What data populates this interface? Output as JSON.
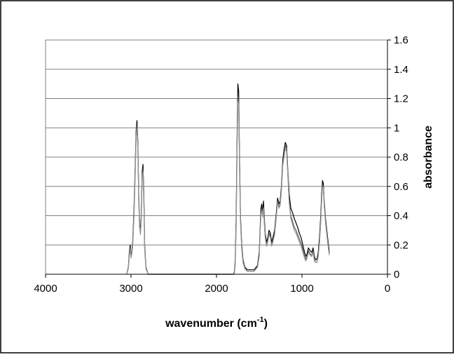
{
  "chart_data": {
    "type": "line",
    "xlabel": "wavenumber (cm",
    "xlabel_sup": "-1",
    "xlabel_close": ")",
    "ylabel": "absorbance",
    "xlim": [
      4000,
      0
    ],
    "ylim": [
      0,
      1.6
    ],
    "x_reversed": true,
    "y_axis_side": "right",
    "grid": "horizontal",
    "legend": "none",
    "x_ticks": [
      "4000",
      "3000",
      "2000",
      "1000",
      "0"
    ],
    "x_tick_values": [
      4000,
      3000,
      2000,
      1000,
      0
    ],
    "y_ticks": [
      "0",
      "0.2",
      "0.4",
      "0.6",
      "0.8",
      "1",
      "1.2",
      "1.4",
      "1.6"
    ],
    "y_tick_values": [
      0,
      0.2,
      0.4,
      0.6,
      0.8,
      1,
      1.2,
      1.4,
      1.6
    ],
    "series": [
      {
        "color": "#000000",
        "points": [
          [
            3050,
            0
          ],
          [
            3030,
            0.05
          ],
          [
            3020,
            0.15
          ],
          [
            3010,
            0.2
          ],
          [
            3000,
            0.12
          ],
          [
            2990,
            0.16
          ],
          [
            2980,
            0.22
          ],
          [
            2965,
            0.45
          ],
          [
            2950,
            0.75
          ],
          [
            2940,
            0.98
          ],
          [
            2930,
            1.05
          ],
          [
            2920,
            0.9
          ],
          [
            2910,
            0.55
          ],
          [
            2900,
            0.35
          ],
          [
            2890,
            0.3
          ],
          [
            2880,
            0.4
          ],
          [
            2870,
            0.7
          ],
          [
            2860,
            0.75
          ],
          [
            2850,
            0.55
          ],
          [
            2840,
            0.2
          ],
          [
            2825,
            0.05
          ],
          [
            2800,
            0
          ],
          [
            1800,
            0
          ],
          [
            1790,
            0.02
          ],
          [
            1780,
            0.1
          ],
          [
            1770,
            0.4
          ],
          [
            1760,
            0.9
          ],
          [
            1750,
            1.3
          ],
          [
            1740,
            1.25
          ],
          [
            1730,
            0.8
          ],
          [
            1720,
            0.4
          ],
          [
            1705,
            0.2
          ],
          [
            1690,
            0.1
          ],
          [
            1670,
            0.05
          ],
          [
            1640,
            0.03
          ],
          [
            1600,
            0.03
          ],
          [
            1560,
            0.03
          ],
          [
            1520,
            0.06
          ],
          [
            1500,
            0.15
          ],
          [
            1490,
            0.3
          ],
          [
            1480,
            0.45
          ],
          [
            1470,
            0.48
          ],
          [
            1460,
            0.42
          ],
          [
            1450,
            0.5
          ],
          [
            1440,
            0.38
          ],
          [
            1430,
            0.28
          ],
          [
            1415,
            0.22
          ],
          [
            1400,
            0.25
          ],
          [
            1385,
            0.3
          ],
          [
            1370,
            0.28
          ],
          [
            1355,
            0.22
          ],
          [
            1340,
            0.25
          ],
          [
            1320,
            0.3
          ],
          [
            1300,
            0.42
          ],
          [
            1285,
            0.52
          ],
          [
            1270,
            0.48
          ],
          [
            1255,
            0.5
          ],
          [
            1240,
            0.6
          ],
          [
            1225,
            0.78
          ],
          [
            1210,
            0.85
          ],
          [
            1195,
            0.9
          ],
          [
            1180,
            0.88
          ],
          [
            1165,
            0.7
          ],
          [
            1150,
            0.55
          ],
          [
            1130,
            0.45
          ],
          [
            1110,
            0.42
          ],
          [
            1090,
            0.38
          ],
          [
            1070,
            0.35
          ],
          [
            1050,
            0.32
          ],
          [
            1030,
            0.28
          ],
          [
            1010,
            0.25
          ],
          [
            990,
            0.2
          ],
          [
            970,
            0.15
          ],
          [
            955,
            0.12
          ],
          [
            940,
            0.14
          ],
          [
            925,
            0.18
          ],
          [
            905,
            0.16
          ],
          [
            885,
            0.15
          ],
          [
            870,
            0.18
          ],
          [
            855,
            0.12
          ],
          [
            840,
            0.1
          ],
          [
            825,
            0.1
          ],
          [
            810,
            0.15
          ],
          [
            795,
            0.25
          ],
          [
            780,
            0.4
          ],
          [
            770,
            0.55
          ],
          [
            760,
            0.64
          ],
          [
            750,
            0.62
          ],
          [
            740,
            0.5
          ],
          [
            725,
            0.38
          ],
          [
            710,
            0.3
          ],
          [
            700,
            0.25
          ],
          [
            690,
            0.2
          ],
          [
            680,
            0.15
          ]
        ]
      },
      {
        "color": "#555555",
        "points": [
          [
            3050,
            0
          ],
          [
            3030,
            0.05
          ],
          [
            3020,
            0.14
          ],
          [
            3010,
            0.18
          ],
          [
            3000,
            0.12
          ],
          [
            2990,
            0.15
          ],
          [
            2980,
            0.2
          ],
          [
            2965,
            0.42
          ],
          [
            2950,
            0.72
          ],
          [
            2940,
            0.95
          ],
          [
            2930,
            1.02
          ],
          [
            2920,
            0.88
          ],
          [
            2910,
            0.52
          ],
          [
            2900,
            0.33
          ],
          [
            2890,
            0.28
          ],
          [
            2880,
            0.38
          ],
          [
            2870,
            0.68
          ],
          [
            2860,
            0.72
          ],
          [
            2850,
            0.52
          ],
          [
            2840,
            0.18
          ],
          [
            2825,
            0.04
          ],
          [
            2800,
            0
          ],
          [
            1800,
            0
          ],
          [
            1790,
            0.01
          ],
          [
            1780,
            0.08
          ],
          [
            1770,
            0.35
          ],
          [
            1760,
            0.85
          ],
          [
            1750,
            1.22
          ],
          [
            1740,
            1.2
          ],
          [
            1730,
            0.75
          ],
          [
            1720,
            0.38
          ],
          [
            1705,
            0.18
          ],
          [
            1690,
            0.09
          ],
          [
            1670,
            0.04
          ],
          [
            1640,
            0.02
          ],
          [
            1600,
            0.02
          ],
          [
            1560,
            0.02
          ],
          [
            1520,
            0.05
          ],
          [
            1500,
            0.13
          ],
          [
            1490,
            0.28
          ],
          [
            1480,
            0.42
          ],
          [
            1470,
            0.45
          ],
          [
            1460,
            0.4
          ],
          [
            1450,
            0.46
          ],
          [
            1440,
            0.35
          ],
          [
            1430,
            0.26
          ],
          [
            1415,
            0.2
          ],
          [
            1400,
            0.23
          ],
          [
            1385,
            0.28
          ],
          [
            1370,
            0.26
          ],
          [
            1355,
            0.2
          ],
          [
            1340,
            0.23
          ],
          [
            1320,
            0.28
          ],
          [
            1300,
            0.4
          ],
          [
            1285,
            0.5
          ],
          [
            1270,
            0.46
          ],
          [
            1255,
            0.48
          ],
          [
            1240,
            0.58
          ],
          [
            1225,
            0.75
          ],
          [
            1210,
            0.82
          ],
          [
            1195,
            0.88
          ],
          [
            1180,
            0.86
          ],
          [
            1165,
            0.68
          ],
          [
            1150,
            0.5
          ],
          [
            1130,
            0.4
          ],
          [
            1110,
            0.36
          ],
          [
            1090,
            0.32
          ],
          [
            1070,
            0.3
          ],
          [
            1050,
            0.27
          ],
          [
            1030,
            0.24
          ],
          [
            1010,
            0.21
          ],
          [
            990,
            0.17
          ],
          [
            970,
            0.12
          ],
          [
            955,
            0.1
          ],
          [
            940,
            0.12
          ],
          [
            925,
            0.16
          ],
          [
            905,
            0.14
          ],
          [
            885,
            0.13
          ],
          [
            870,
            0.16
          ],
          [
            855,
            0.1
          ],
          [
            840,
            0.08
          ],
          [
            825,
            0.08
          ],
          [
            810,
            0.13
          ],
          [
            795,
            0.22
          ],
          [
            780,
            0.37
          ],
          [
            770,
            0.52
          ],
          [
            760,
            0.61
          ],
          [
            750,
            0.6
          ],
          [
            740,
            0.48
          ],
          [
            725,
            0.36
          ],
          [
            710,
            0.28
          ],
          [
            700,
            0.23
          ],
          [
            690,
            0.18
          ],
          [
            680,
            0.14
          ]
        ]
      },
      {
        "color": "#999999",
        "points": [
          [
            3050,
            0
          ],
          [
            3030,
            0.04
          ],
          [
            3020,
            0.12
          ],
          [
            3010,
            0.17
          ],
          [
            3000,
            0.11
          ],
          [
            2990,
            0.14
          ],
          [
            2980,
            0.19
          ],
          [
            2965,
            0.4
          ],
          [
            2950,
            0.7
          ],
          [
            2940,
            0.93
          ],
          [
            2930,
            1.0
          ],
          [
            2920,
            0.86
          ],
          [
            2910,
            0.5
          ],
          [
            2900,
            0.32
          ],
          [
            2890,
            0.27
          ],
          [
            2880,
            0.36
          ],
          [
            2870,
            0.66
          ],
          [
            2860,
            0.7
          ],
          [
            2850,
            0.5
          ],
          [
            2840,
            0.17
          ],
          [
            2825,
            0.04
          ],
          [
            2800,
            0
          ],
          [
            1800,
            0
          ],
          [
            1790,
            0.01
          ],
          [
            1780,
            0.07
          ],
          [
            1770,
            0.33
          ],
          [
            1760,
            0.82
          ],
          [
            1750,
            1.18
          ],
          [
            1740,
            1.16
          ],
          [
            1730,
            0.72
          ],
          [
            1720,
            0.36
          ],
          [
            1705,
            0.17
          ],
          [
            1690,
            0.08
          ],
          [
            1670,
            0.04
          ],
          [
            1640,
            0.02
          ],
          [
            1600,
            0.02
          ],
          [
            1560,
            0.02
          ],
          [
            1520,
            0.05
          ],
          [
            1500,
            0.12
          ],
          [
            1490,
            0.27
          ],
          [
            1480,
            0.4
          ],
          [
            1470,
            0.44
          ],
          [
            1460,
            0.39
          ],
          [
            1450,
            0.45
          ],
          [
            1440,
            0.34
          ],
          [
            1430,
            0.25
          ],
          [
            1415,
            0.19
          ],
          [
            1400,
            0.22
          ],
          [
            1385,
            0.27
          ],
          [
            1370,
            0.25
          ],
          [
            1355,
            0.19
          ],
          [
            1340,
            0.22
          ],
          [
            1320,
            0.27
          ],
          [
            1300,
            0.39
          ],
          [
            1285,
            0.49
          ],
          [
            1270,
            0.45
          ],
          [
            1255,
            0.47
          ],
          [
            1240,
            0.57
          ],
          [
            1225,
            0.74
          ],
          [
            1210,
            0.8
          ],
          [
            1195,
            0.86
          ],
          [
            1180,
            0.84
          ],
          [
            1165,
            0.67
          ],
          [
            1150,
            0.49
          ],
          [
            1130,
            0.38
          ],
          [
            1110,
            0.34
          ],
          [
            1090,
            0.3
          ],
          [
            1070,
            0.28
          ],
          [
            1050,
            0.25
          ],
          [
            1030,
            0.22
          ],
          [
            1010,
            0.19
          ],
          [
            990,
            0.15
          ],
          [
            970,
            0.11
          ],
          [
            955,
            0.09
          ],
          [
            940,
            0.11
          ],
          [
            925,
            0.15
          ],
          [
            905,
            0.13
          ],
          [
            885,
            0.12
          ],
          [
            870,
            0.15
          ],
          [
            855,
            0.09
          ],
          [
            840,
            0.08
          ],
          [
            825,
            0.08
          ],
          [
            810,
            0.12
          ],
          [
            795,
            0.21
          ],
          [
            780,
            0.35
          ],
          [
            770,
            0.5
          ],
          [
            760,
            0.6
          ],
          [
            750,
            0.59
          ],
          [
            740,
            0.47
          ],
          [
            725,
            0.35
          ],
          [
            710,
            0.27
          ],
          [
            700,
            0.22
          ],
          [
            690,
            0.17
          ],
          [
            680,
            0.13
          ]
        ]
      }
    ]
  }
}
